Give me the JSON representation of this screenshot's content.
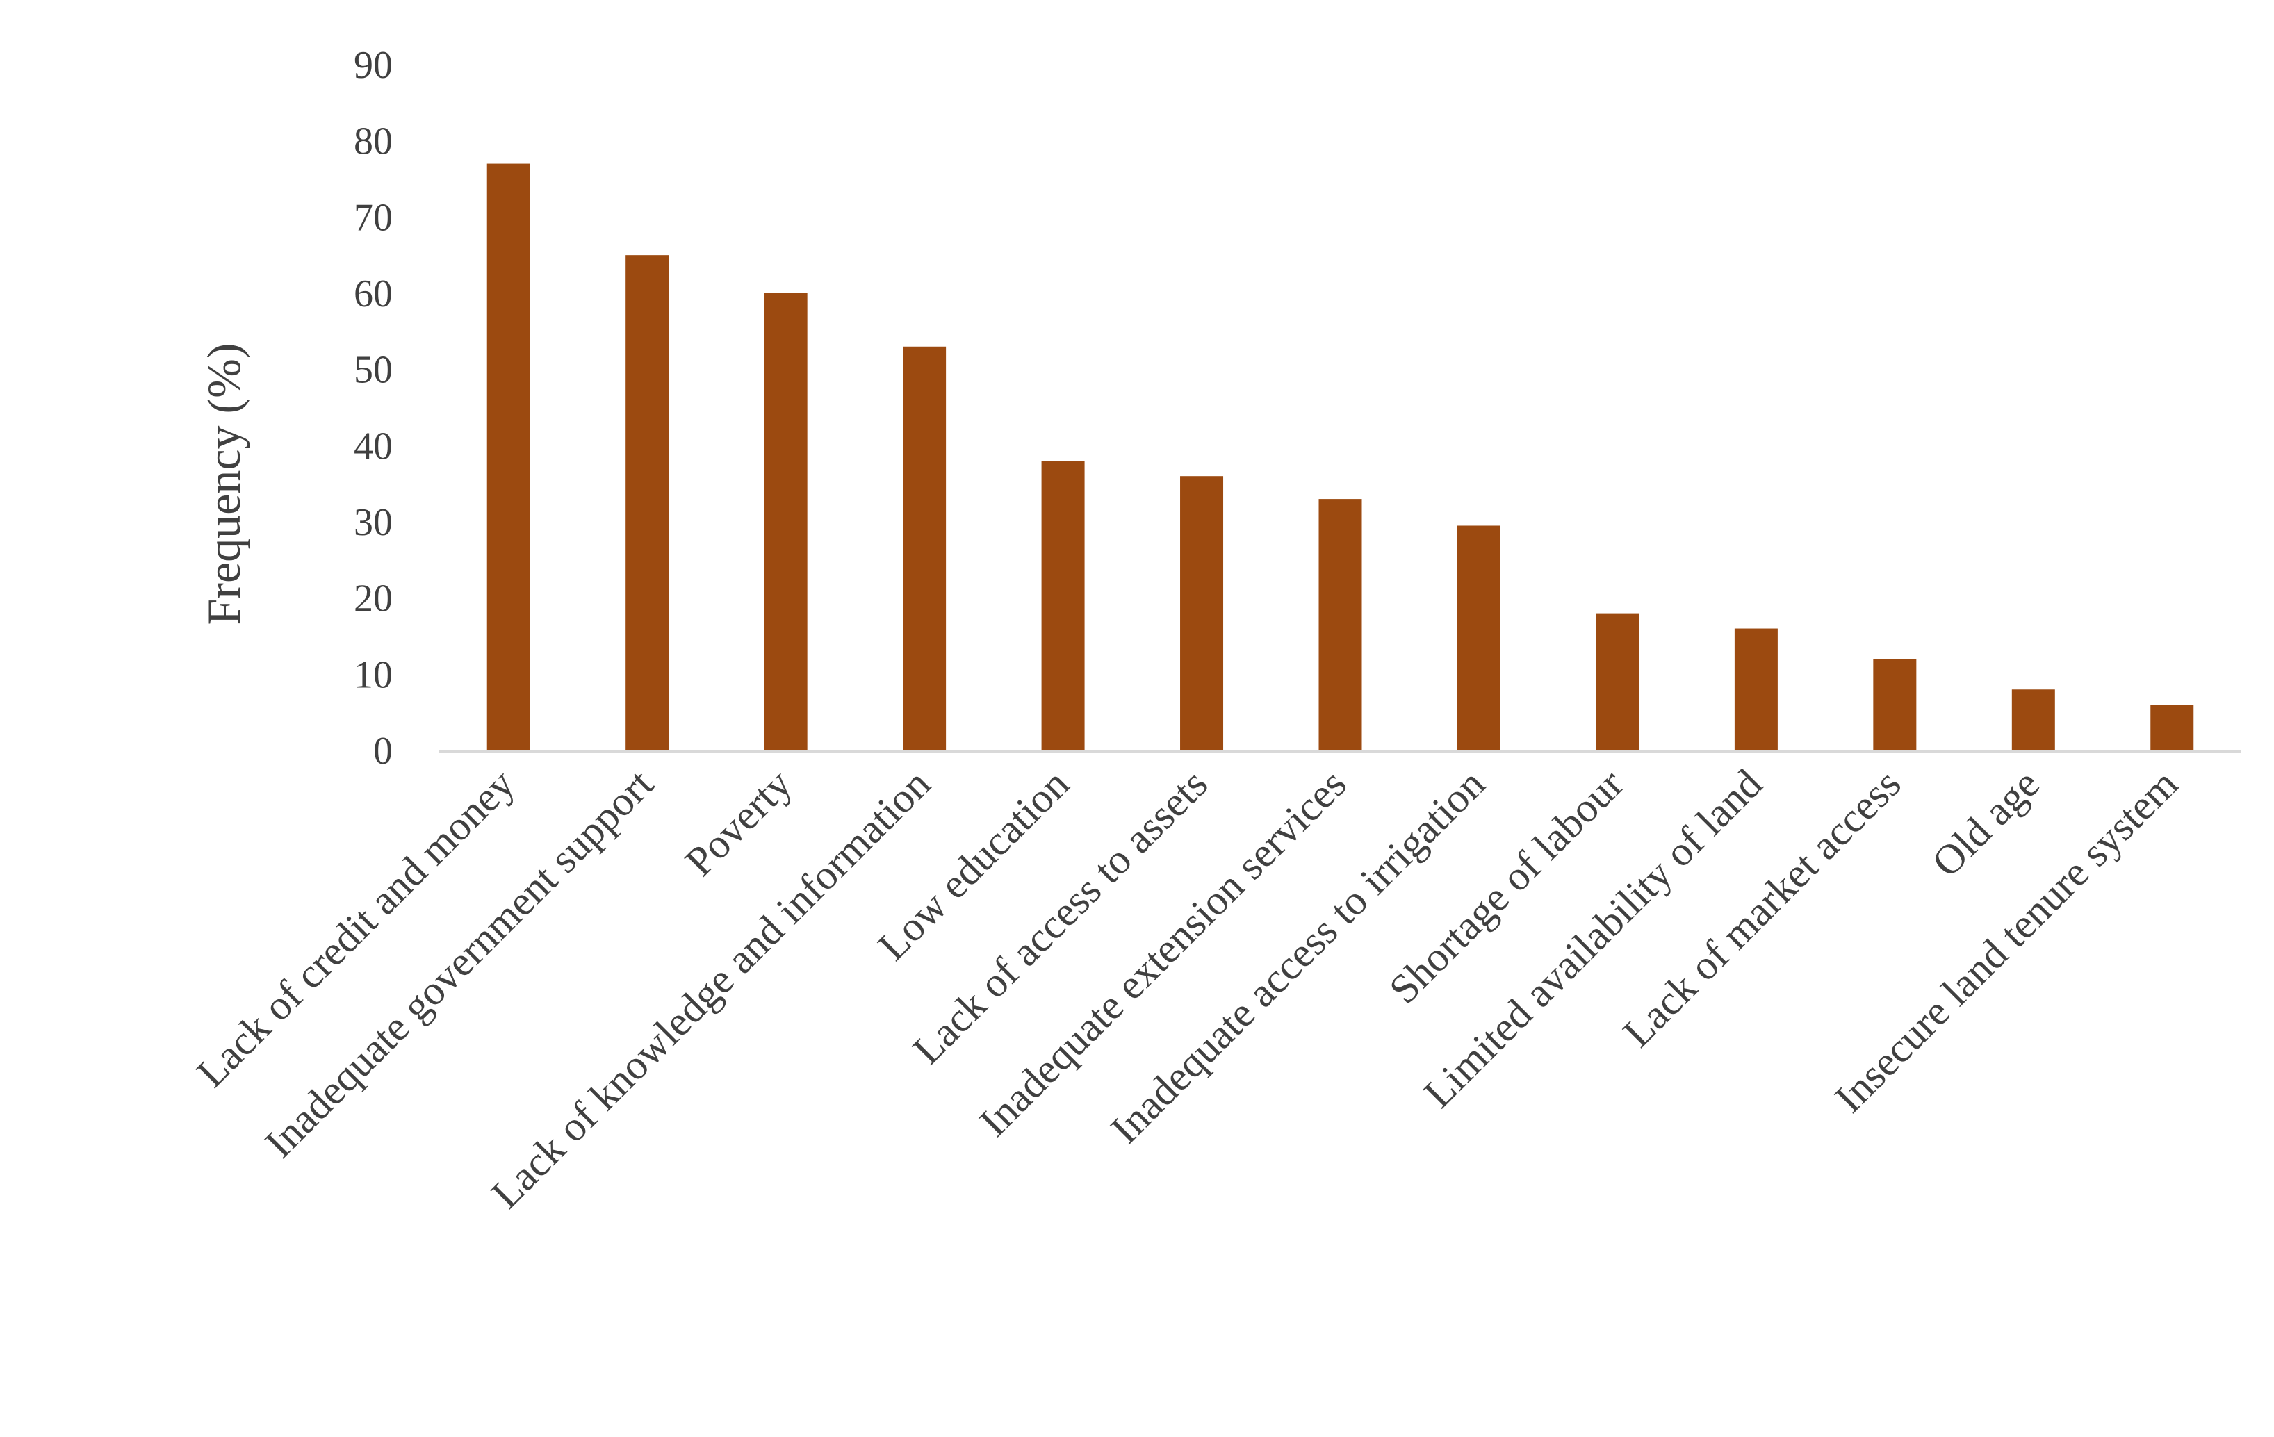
{
  "chart_data": {
    "type": "bar",
    "title": "",
    "xlabel": "",
    "ylabel": "Frequency (%)",
    "ylim": [
      0,
      90
    ],
    "yticks": [
      0,
      10,
      20,
      30,
      40,
      50,
      60,
      70,
      80,
      90
    ],
    "grid": false,
    "legend": "none",
    "bar_color": "#9C4A10",
    "axis_color": "#D9D9D9",
    "text_color": "#404040",
    "categories": [
      "Lack of credit and money",
      "Inadequate government support",
      "Poverty",
      "Lack of knowledge and information",
      "Low education",
      "Lack of access to assets",
      "Inadequate extension services",
      "Inadequate access to irrigation",
      "Shortage of labour",
      "Limited availability of land",
      "Lack of market access",
      "Old age",
      "Insecure land tenure system"
    ],
    "values": [
      77,
      65,
      60,
      53,
      38,
      36,
      33,
      29.5,
      18,
      16,
      12,
      8,
      6
    ]
  }
}
